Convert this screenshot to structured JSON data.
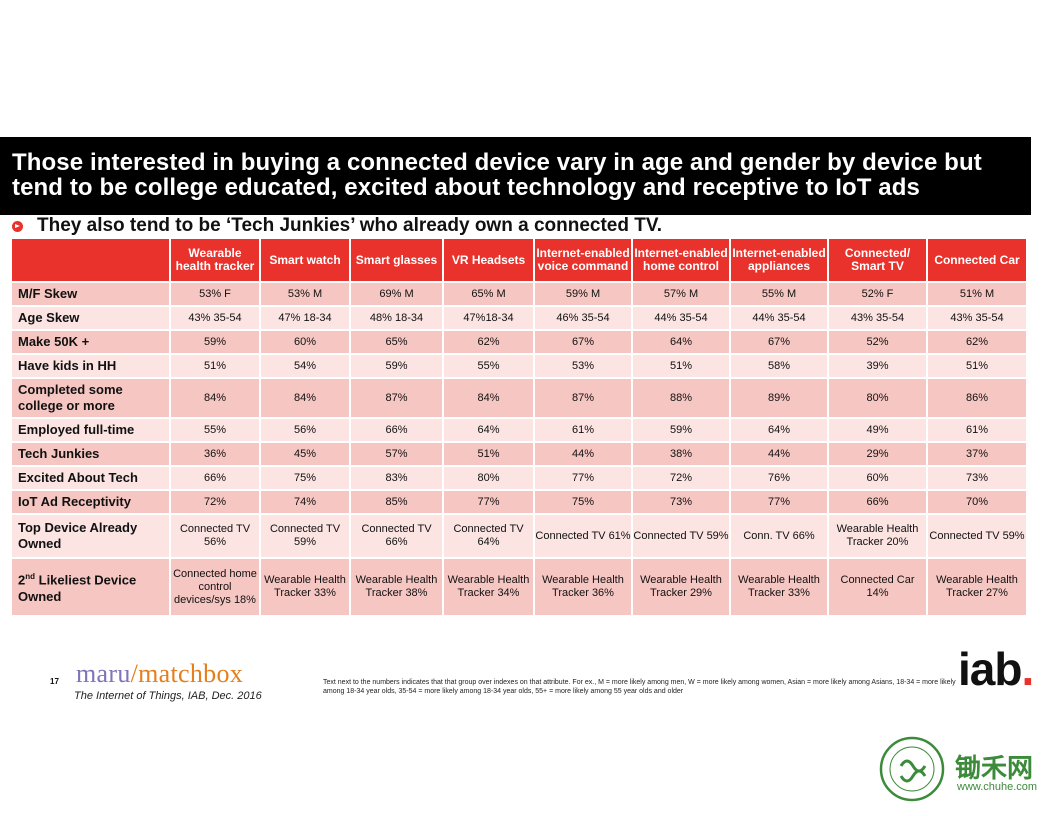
{
  "title": "Those interested in buying a connected device vary in age and gender by device but tend to be college educated, excited about technology and receptive to IoT ads",
  "subtitle": "They also tend to be ‘Tech Junkies’ who already own a connected TV.",
  "table": {
    "columns": [
      "Wearable health tracker",
      "Smart watch",
      "Smart glasses",
      "VR Headsets",
      "Internet-enabled voice command",
      "Internet-enabled home control",
      "Internet-enabled appliances",
      "Connected/ Smart TV",
      "Connected Car"
    ],
    "rows": [
      {
        "label": "M/F Skew",
        "values": [
          "53% F",
          "53% M",
          "69% M",
          "65% M",
          "59% M",
          "57% M",
          "55% M",
          "52% F",
          "51% M"
        ]
      },
      {
        "label": "Age Skew",
        "values": [
          "43% 35-54",
          "47% 18-34",
          "48% 18-34",
          "47%18-34",
          "46% 35-54",
          "44% 35-54",
          "44% 35-54",
          "43% 35-54",
          "43% 35-54"
        ]
      },
      {
        "label": "Make 50K +",
        "values": [
          "59%",
          "60%",
          "65%",
          "62%",
          "67%",
          "64%",
          "67%",
          "52%",
          "62%"
        ]
      },
      {
        "label": "Have kids in HH",
        "values": [
          "51%",
          "54%",
          "59%",
          "55%",
          "53%",
          "51%",
          "58%",
          "39%",
          "51%"
        ]
      },
      {
        "label": "Completed some college or more",
        "values": [
          "84%",
          "84%",
          "87%",
          "84%",
          "87%",
          "88%",
          "89%",
          "80%",
          "86%"
        ]
      },
      {
        "label": "Employed full-time",
        "values": [
          "55%",
          "56%",
          "66%",
          "64%",
          "61%",
          "59%",
          "64%",
          "49%",
          "61%"
        ]
      },
      {
        "label": "Tech Junkies",
        "values": [
          "36%",
          "45%",
          "57%",
          "51%",
          "44%",
          "38%",
          "44%",
          "29%",
          "37%"
        ]
      },
      {
        "label": "Excited About Tech",
        "values": [
          "66%",
          "75%",
          "83%",
          "80%",
          "77%",
          "72%",
          "76%",
          "60%",
          "73%"
        ]
      },
      {
        "label": "IoT Ad Receptivity",
        "values": [
          "72%",
          "74%",
          "85%",
          "77%",
          "75%",
          "73%",
          "77%",
          "66%",
          "70%"
        ]
      },
      {
        "label": "Top Device Already Owned",
        "values": [
          "Connected TV 56%",
          "Connected TV 59%",
          "Connected TV 66%",
          "Connected TV 64%",
          "Connected TV 61%",
          "Connected TV 59%",
          "Conn. TV 66%",
          "Wearable Health Tracker 20%",
          "Connected TV 59%"
        ]
      },
      {
        "label_main": "2",
        "label_sup": "nd",
        "label_rest": " Likeliest Device Owned",
        "values": [
          "Connected home control devices/sys 18%",
          "Wearable Health Tracker 33%",
          "Wearable Health Tracker 38%",
          "Wearable Health Tracker 34%",
          "Wearable Health Tracker 36%",
          "Wearable Health Tracker 29%",
          "Wearable Health Tracker 33%",
          "Connected Car 14%",
          "Wearable Health Tracker 27%"
        ]
      }
    ]
  },
  "footer": {
    "page_number": "17",
    "logo_left": "maru",
    "logo_slash": "/",
    "logo_right": "matchbox",
    "source": "The Internet of Things, IAB, Dec. 2016",
    "footnote": "Text next to the numbers indicates that that group over indexes on that attribute. For ex., M = more likely among men, W = more likely among women, Asian = more likely among Asians, 18-34 = more likely among 18-34 year olds, 35-54 = more likely among 18-34 year olds, 55+ = more likely among 55 year olds and older",
    "iab_logo": "iab",
    "iab_dot": "."
  },
  "watermark": {
    "brand_cn": "锄禾网",
    "url": "www.chuhe.com"
  },
  "colors": {
    "header_red": "#e8322b",
    "row_dark": "#f6c6c2",
    "row_light": "#fbe4e2",
    "title_bg": "#000000",
    "brand_green": "#3b8b3a"
  }
}
